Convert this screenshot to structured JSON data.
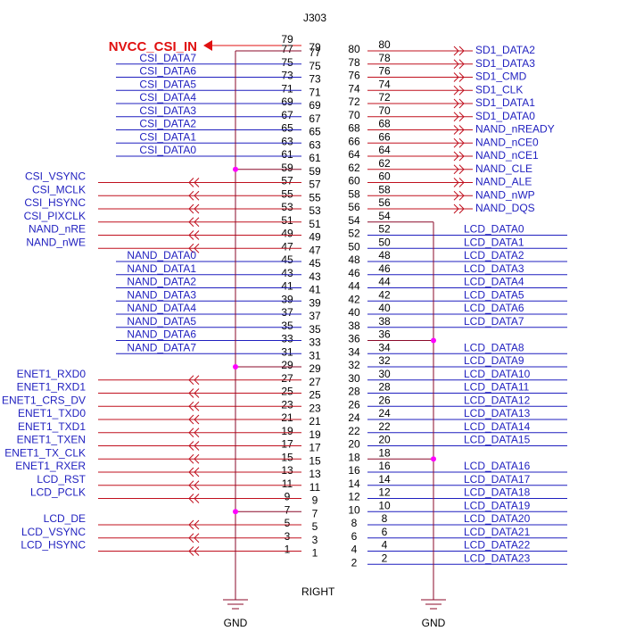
{
  "refdes": "J303",
  "footer": "RIGHT",
  "power": {
    "label": "NVCC_CSI_IN",
    "pin": "79",
    "color": "#e01010"
  },
  "gnd_label": "GND",
  "colors": {
    "signal": "#1f1fbf",
    "wire": "#8b0a2a",
    "port": "#c0101e",
    "junction": "#ff00ff",
    "power": "#e01010"
  },
  "left_pins": [
    {
      "pin": "77",
      "signal": "",
      "style": "gnd"
    },
    {
      "pin": "75",
      "signal": "CSI_DATA7",
      "style": "net"
    },
    {
      "pin": "73",
      "signal": "CSI_DATA6",
      "style": "net"
    },
    {
      "pin": "71",
      "signal": "CSI_DATA5",
      "style": "net"
    },
    {
      "pin": "69",
      "signal": "CSI_DATA4",
      "style": "net"
    },
    {
      "pin": "67",
      "signal": "CSI_DATA3",
      "style": "net"
    },
    {
      "pin": "65",
      "signal": "CSI_DATA2",
      "style": "net"
    },
    {
      "pin": "63",
      "signal": "CSI_DATA1",
      "style": "net"
    },
    {
      "pin": "61",
      "signal": "CSI_DATA0",
      "style": "net"
    },
    {
      "pin": "59",
      "signal": "",
      "style": "gnd"
    },
    {
      "pin": "57",
      "signal": "CSI_VSYNC",
      "style": "port"
    },
    {
      "pin": "55",
      "signal": "CSI_MCLK",
      "style": "port"
    },
    {
      "pin": "53",
      "signal": "CSI_HSYNC",
      "style": "port"
    },
    {
      "pin": "51",
      "signal": "CSI_PIXCLK",
      "style": "port"
    },
    {
      "pin": "49",
      "signal": "NAND_nRE",
      "style": "port"
    },
    {
      "pin": "47",
      "signal": "NAND_nWE",
      "style": "port"
    },
    {
      "pin": "45",
      "signal": "NAND_DATA0",
      "style": "net"
    },
    {
      "pin": "43",
      "signal": "NAND_DATA1",
      "style": "net"
    },
    {
      "pin": "41",
      "signal": "NAND_DATA2",
      "style": "net"
    },
    {
      "pin": "39",
      "signal": "NAND_DATA3",
      "style": "net"
    },
    {
      "pin": "37",
      "signal": "NAND_DATA4",
      "style": "net"
    },
    {
      "pin": "35",
      "signal": "NAND_DATA5",
      "style": "net"
    },
    {
      "pin": "33",
      "signal": "NAND_DATA6",
      "style": "net"
    },
    {
      "pin": "31",
      "signal": "NAND_DATA7",
      "style": "net"
    },
    {
      "pin": "29",
      "signal": "",
      "style": "gnd"
    },
    {
      "pin": "27",
      "signal": "ENET1_RXD0",
      "style": "port"
    },
    {
      "pin": "25",
      "signal": "ENET1_RXD1",
      "style": "port"
    },
    {
      "pin": "23",
      "signal": "ENET1_CRS_DV",
      "style": "port"
    },
    {
      "pin": "21",
      "signal": "ENET1_TXD0",
      "style": "port"
    },
    {
      "pin": "19",
      "signal": "ENET1_TXD1",
      "style": "port"
    },
    {
      "pin": "17",
      "signal": "ENET1_TXEN",
      "style": "port"
    },
    {
      "pin": "15",
      "signal": "ENET1_TX_CLK",
      "style": "port"
    },
    {
      "pin": "13",
      "signal": "ENET1_RXER",
      "style": "port"
    },
    {
      "pin": "11",
      "signal": "LCD_RST",
      "style": "port"
    },
    {
      "pin": "9",
      "signal": "LCD_PCLK",
      "style": "port"
    },
    {
      "pin": "7",
      "signal": "",
      "style": "gnd"
    },
    {
      "pin": "5",
      "signal": "LCD_DE",
      "style": "port"
    },
    {
      "pin": "3",
      "signal": "LCD_VSYNC",
      "style": "port"
    },
    {
      "pin": "1",
      "signal": "LCD_HSYNC",
      "style": "port"
    }
  ],
  "right_pins": [
    {
      "pin": "80",
      "signal": "SD1_DATA2",
      "style": "port"
    },
    {
      "pin": "78",
      "signal": "SD1_DATA3",
      "style": "port"
    },
    {
      "pin": "76",
      "signal": "SD1_CMD",
      "style": "port"
    },
    {
      "pin": "74",
      "signal": "SD1_CLK",
      "style": "port"
    },
    {
      "pin": "72",
      "signal": "SD1_DATA1",
      "style": "port"
    },
    {
      "pin": "70",
      "signal": "SD1_DATA0",
      "style": "port"
    },
    {
      "pin": "68",
      "signal": "NAND_nREADY",
      "style": "port"
    },
    {
      "pin": "66",
      "signal": "NAND_nCE0",
      "style": "port"
    },
    {
      "pin": "64",
      "signal": "NAND_nCE1",
      "style": "port"
    },
    {
      "pin": "62",
      "signal": "NAND_CLE",
      "style": "port"
    },
    {
      "pin": "60",
      "signal": "NAND_ALE",
      "style": "port"
    },
    {
      "pin": "58",
      "signal": "NAND_nWP",
      "style": "port"
    },
    {
      "pin": "56",
      "signal": "NAND_DQS",
      "style": "port"
    },
    {
      "pin": "54",
      "signal": "",
      "style": "gnd"
    },
    {
      "pin": "52",
      "signal": "LCD_DATA0",
      "style": "net"
    },
    {
      "pin": "50",
      "signal": "LCD_DATA1",
      "style": "net"
    },
    {
      "pin": "48",
      "signal": "LCD_DATA2",
      "style": "net"
    },
    {
      "pin": "46",
      "signal": "LCD_DATA3",
      "style": "net"
    },
    {
      "pin": "44",
      "signal": "LCD_DATA4",
      "style": "net"
    },
    {
      "pin": "42",
      "signal": "LCD_DATA5",
      "style": "net"
    },
    {
      "pin": "40",
      "signal": "LCD_DATA6",
      "style": "net"
    },
    {
      "pin": "38",
      "signal": "LCD_DATA7",
      "style": "net"
    },
    {
      "pin": "36",
      "signal": "",
      "style": "gnd"
    },
    {
      "pin": "34",
      "signal": "LCD_DATA8",
      "style": "net"
    },
    {
      "pin": "32",
      "signal": "LCD_DATA9",
      "style": "net"
    },
    {
      "pin": "30",
      "signal": "LCD_DATA10",
      "style": "net"
    },
    {
      "pin": "28",
      "signal": "LCD_DATA11",
      "style": "net"
    },
    {
      "pin": "26",
      "signal": "LCD_DATA12",
      "style": "net"
    },
    {
      "pin": "24",
      "signal": "LCD_DATA13",
      "style": "net"
    },
    {
      "pin": "22",
      "signal": "LCD_DATA14",
      "style": "net"
    },
    {
      "pin": "20",
      "signal": "LCD_DATA15",
      "style": "net"
    },
    {
      "pin": "18",
      "signal": "",
      "style": "gnd"
    },
    {
      "pin": "16",
      "signal": "LCD_DATA16",
      "style": "net"
    },
    {
      "pin": "14",
      "signal": "LCD_DATA17",
      "style": "net"
    },
    {
      "pin": "12",
      "signal": "LCD_DATA18",
      "style": "net"
    },
    {
      "pin": "10",
      "signal": "LCD_DATA19",
      "style": "net"
    },
    {
      "pin": "8",
      "signal": "LCD_DATA20",
      "style": "net"
    },
    {
      "pin": "6",
      "signal": "LCD_DATA21",
      "style": "net"
    },
    {
      "pin": "4",
      "signal": "LCD_DATA22",
      "style": "net"
    },
    {
      "pin": "2",
      "signal": "LCD_DATA23",
      "style": "net"
    }
  ]
}
